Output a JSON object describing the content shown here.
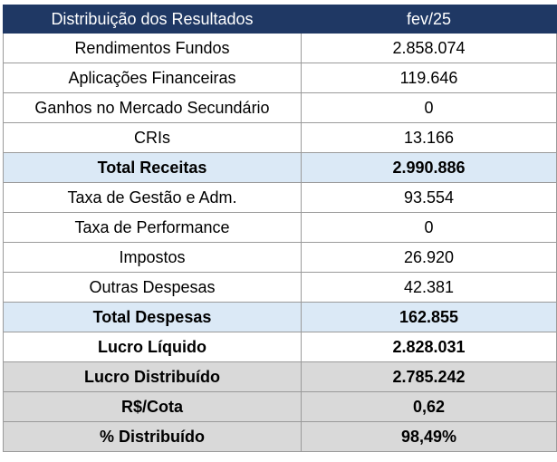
{
  "table": {
    "header": {
      "label": "Distribuição dos Resultados",
      "period": "fev/25"
    },
    "rows": [
      {
        "label": "Rendimentos Fundos",
        "value": "2.858.074"
      },
      {
        "label": "Aplicações Financeiras",
        "value": "119.646"
      },
      {
        "label": "Ganhos no Mercado Secundário",
        "value": "0"
      },
      {
        "label": "CRIs",
        "value": "13.166"
      },
      {
        "label": "Total Receitas",
        "value": "2.990.886"
      },
      {
        "label": "Taxa de Gestão e Adm.",
        "value": "93.554"
      },
      {
        "label": "Taxa de Performance",
        "value": "0"
      },
      {
        "label": "Impostos",
        "value": "26.920"
      },
      {
        "label": "Outras Despesas",
        "value": "42.381"
      },
      {
        "label": "Total Despesas",
        "value": "162.855"
      },
      {
        "label": "Lucro Líquido",
        "value": "2.828.031"
      },
      {
        "label": "Lucro Distribuído",
        "value": "2.785.242"
      },
      {
        "label": "R$/Cota",
        "value": "0,62"
      },
      {
        "label": "% Distribuído",
        "value": "98,49%"
      }
    ]
  },
  "colors": {
    "header_bg": "#1f3864",
    "total_row_bg": "#dbe9f6",
    "summary_row_bg": "#d9d9d9"
  }
}
